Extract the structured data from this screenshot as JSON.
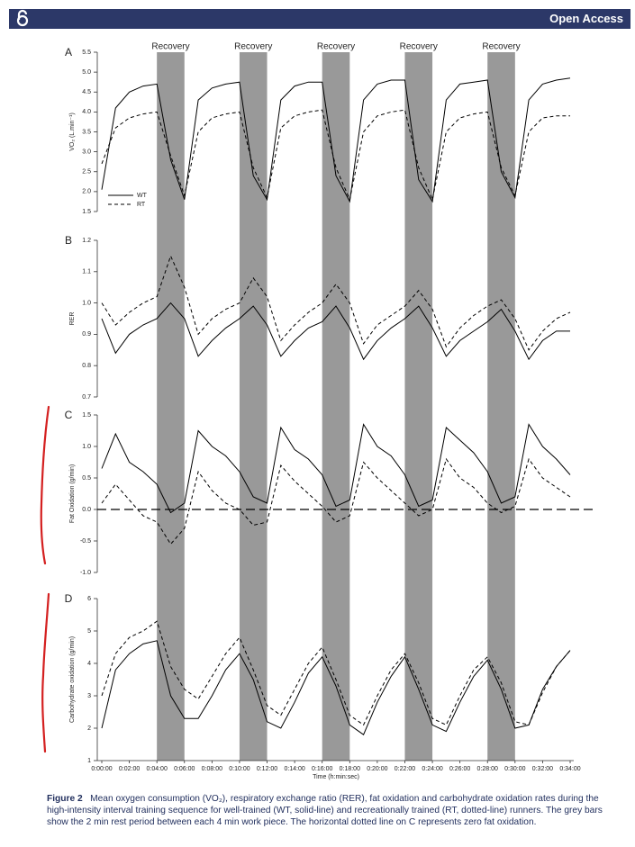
{
  "header": {
    "badge": "Open Access"
  },
  "caption": {
    "label": "Figure 2",
    "text": "Mean oxygen consumption (VO₂), respiratory exchange ratio (RER), fat oxidation and carbohydrate oxidation rates during the high-intensity interval training sequence for well-trained (WT, solid-line) and recreationally trained (RT, dotted-line) runners. The grey bars show the 2 min rest period between each 4 min work piece. The horizontal dotted line on C represents zero fat oxidation."
  },
  "chart_data": [
    {
      "type": "line",
      "panel_label": "A",
      "ylabel": "VO₂ (L.min⁻¹)",
      "x": [
        0,
        1,
        2,
        3,
        4,
        5,
        6,
        7,
        8,
        9,
        10,
        11,
        12,
        13,
        14,
        15,
        16,
        17,
        18,
        19,
        20,
        21,
        22,
        23,
        24,
        25,
        26,
        27,
        28,
        29,
        30,
        31,
        32,
        33,
        34
      ],
      "xlim": [
        0,
        34
      ],
      "ylim": [
        1.5,
        5.5
      ],
      "yticks": [
        1.5,
        {
          "value": 2,
          "label": "2.0"
        },
        2.5,
        {
          "value": 3,
          "label": "3.0"
        },
        3.5,
        {
          "value": 4,
          "label": "4.0"
        },
        4.5,
        {
          "value": 5,
          "label": "5.0"
        },
        5.5
      ],
      "legend": "lower left",
      "bands": [
        {
          "label": "Recovery",
          "xrange": [
            4,
            6
          ]
        },
        {
          "label": "Recovery",
          "xrange": [
            10,
            12
          ]
        },
        {
          "label": "Recovery",
          "xrange": [
            16,
            18
          ]
        },
        {
          "label": "Recovery",
          "xrange": [
            22,
            24
          ]
        },
        {
          "label": "Recovery",
          "xrange": [
            28,
            30
          ]
        }
      ],
      "band_color": "#999999",
      "series": [
        {
          "name": "WT",
          "color": "#000000",
          "line_style": "solid",
          "values": [
            2.05,
            4.1,
            4.5,
            4.65,
            4.7,
            2.8,
            1.8,
            4.3,
            4.6,
            4.7,
            4.75,
            2.4,
            1.8,
            4.3,
            4.65,
            4.75,
            4.75,
            2.4,
            1.75,
            4.3,
            4.7,
            4.8,
            4.8,
            2.3,
            1.75,
            4.3,
            4.7,
            4.75,
            4.8,
            2.5,
            1.85,
            4.3,
            4.7,
            4.8,
            4.85
          ]
        },
        {
          "name": "RT",
          "color": "#000000",
          "line_style": "dashed",
          "values": [
            2.7,
            3.6,
            3.85,
            3.95,
            4.0,
            2.9,
            1.9,
            3.5,
            3.85,
            3.95,
            4.0,
            2.6,
            1.85,
            3.6,
            3.9,
            4.0,
            4.05,
            2.6,
            1.8,
            3.5,
            3.9,
            4.0,
            4.05,
            2.6,
            1.8,
            3.5,
            3.85,
            3.95,
            4.0,
            2.6,
            1.9,
            3.5,
            3.85,
            3.9,
            3.9
          ]
        }
      ]
    },
    {
      "type": "line",
      "panel_label": "B",
      "ylabel": "RER",
      "x": [
        0,
        1,
        2,
        3,
        4,
        5,
        6,
        7,
        8,
        9,
        10,
        11,
        12,
        13,
        14,
        15,
        16,
        17,
        18,
        19,
        20,
        21,
        22,
        23,
        24,
        25,
        26,
        27,
        28,
        29,
        30,
        31,
        32,
        33,
        34
      ],
      "xlim": [
        0,
        34
      ],
      "ylim": [
        0.7,
        1.2
      ],
      "yticks": [
        0.7,
        0.8,
        0.9,
        {
          "value": 1,
          "label": "1.0"
        },
        1.1,
        1.2
      ],
      "series": [
        {
          "name": "WT",
          "color": "#000000",
          "line_style": "solid",
          "values": [
            0.95,
            0.84,
            0.9,
            0.93,
            0.95,
            1.0,
            0.95,
            0.83,
            0.88,
            0.92,
            0.95,
            0.99,
            0.93,
            0.83,
            0.88,
            0.92,
            0.94,
            0.99,
            0.92,
            0.82,
            0.88,
            0.92,
            0.95,
            0.99,
            0.92,
            0.83,
            0.88,
            0.91,
            0.94,
            0.98,
            0.91,
            0.82,
            0.88,
            0.91,
            0.91
          ]
        },
        {
          "name": "RT",
          "color": "#000000",
          "line_style": "dashed",
          "values": [
            1.0,
            0.93,
            0.97,
            1.0,
            1.02,
            1.15,
            1.05,
            0.9,
            0.95,
            0.98,
            1.0,
            1.08,
            1.02,
            0.88,
            0.93,
            0.97,
            1.0,
            1.06,
            1.0,
            0.87,
            0.93,
            0.96,
            0.99,
            1.04,
            0.98,
            0.86,
            0.92,
            0.96,
            0.99,
            1.01,
            0.95,
            0.85,
            0.91,
            0.95,
            0.97
          ]
        }
      ]
    },
    {
      "type": "line",
      "panel_label": "C",
      "ylabel": "Fat Oxidation (g/min)",
      "x": [
        0,
        1,
        2,
        3,
        4,
        5,
        6,
        7,
        8,
        9,
        10,
        11,
        12,
        13,
        14,
        15,
        16,
        17,
        18,
        19,
        20,
        21,
        22,
        23,
        24,
        25,
        26,
        27,
        28,
        29,
        30,
        31,
        32,
        33,
        34
      ],
      "xlim": [
        0,
        34
      ],
      "ylim": [
        -1,
        1.5
      ],
      "yticks": [
        {
          "value": -1,
          "label": "-1.0"
        },
        -0.5,
        {
          "value": 0,
          "label": "0.0"
        },
        0.5,
        {
          "value": 1,
          "label": "1.0"
        },
        1.5
      ],
      "reference_line": 0,
      "series": [
        {
          "name": "WT",
          "color": "#000000",
          "line_style": "solid",
          "values": [
            0.65,
            1.2,
            0.75,
            0.6,
            0.4,
            -0.05,
            0.1,
            1.25,
            1.0,
            0.85,
            0.6,
            0.2,
            0.1,
            1.3,
            0.95,
            0.8,
            0.55,
            0.05,
            0.15,
            1.35,
            1.0,
            0.85,
            0.55,
            0.05,
            0.15,
            1.3,
            1.1,
            0.9,
            0.6,
            0.1,
            0.2,
            1.35,
            1.0,
            0.8,
            0.55
          ]
        },
        {
          "name": "RT",
          "color": "#000000",
          "line_style": "dashed",
          "values": [
            0.1,
            0.4,
            0.15,
            -0.1,
            -0.2,
            -0.55,
            -0.3,
            0.6,
            0.3,
            0.1,
            0.0,
            -0.25,
            -0.2,
            0.7,
            0.45,
            0.25,
            0.05,
            -0.2,
            -0.1,
            0.75,
            0.5,
            0.3,
            0.1,
            -0.1,
            0.0,
            0.8,
            0.5,
            0.35,
            0.1,
            -0.05,
            0.05,
            0.8,
            0.5,
            0.35,
            0.2
          ]
        }
      ]
    },
    {
      "type": "line",
      "panel_label": "D",
      "ylabel": "Carbohydrate oxidation (g/min)",
      "xlabel": "Time (h:min:sec)",
      "x": [
        0,
        1,
        2,
        3,
        4,
        5,
        6,
        7,
        8,
        9,
        10,
        11,
        12,
        13,
        14,
        15,
        16,
        17,
        18,
        19,
        20,
        21,
        22,
        23,
        24,
        25,
        26,
        27,
        28,
        29,
        30,
        31,
        32,
        33,
        34
      ],
      "xlim": [
        0,
        34
      ],
      "ylim": [
        1,
        6
      ],
      "yticks": [
        1,
        2,
        3,
        4,
        5,
        6
      ],
      "xticks": [
        {
          "value": 0,
          "label": "0:00:00"
        },
        {
          "value": 2,
          "label": "0:02:00"
        },
        {
          "value": 4,
          "label": "0:04:00"
        },
        {
          "value": 6,
          "label": "0:06:00"
        },
        {
          "value": 8,
          "label": "0:08:00"
        },
        {
          "value": 10,
          "label": "0:10:00"
        },
        {
          "value": 12,
          "label": "0:12:00"
        },
        {
          "value": 14,
          "label": "0:14:00"
        },
        {
          "value": 16,
          "label": "0:16:00"
        },
        {
          "value": 18,
          "label": "0:18:00"
        },
        {
          "value": 20,
          "label": "0:20:00"
        },
        {
          "value": 22,
          "label": "0:22:00"
        },
        {
          "value": 24,
          "label": "0:24:00"
        },
        {
          "value": 26,
          "label": "0:26:00"
        },
        {
          "value": 28,
          "label": "0:28:00"
        },
        {
          "value": 30,
          "label": "0:30:00"
        },
        {
          "value": 32,
          "label": "0:32:00"
        },
        {
          "value": 34,
          "label": "0:34:00"
        }
      ],
      "series": [
        {
          "name": "WT",
          "color": "#000000",
          "line_style": "solid",
          "values": [
            2.0,
            3.8,
            4.3,
            4.6,
            4.7,
            3.0,
            2.3,
            2.3,
            3.0,
            3.8,
            4.3,
            3.5,
            2.2,
            2.0,
            2.8,
            3.7,
            4.2,
            3.3,
            2.1,
            1.8,
            2.8,
            3.6,
            4.2,
            3.2,
            2.1,
            1.9,
            2.8,
            3.6,
            4.1,
            3.2,
            2.0,
            2.1,
            3.2,
            3.9,
            4.4
          ]
        },
        {
          "name": "RT",
          "color": "#000000",
          "line_style": "dashed",
          "values": [
            3.0,
            4.3,
            4.8,
            5.0,
            5.3,
            3.9,
            3.2,
            2.9,
            3.6,
            4.3,
            4.8,
            3.8,
            2.7,
            2.4,
            3.2,
            4.0,
            4.5,
            3.5,
            2.4,
            2.1,
            3.0,
            3.8,
            4.3,
            3.4,
            2.3,
            2.1,
            3.0,
            3.8,
            4.2,
            3.4,
            2.2,
            2.1,
            3.1,
            3.9,
            4.4
          ]
        }
      ]
    }
  ]
}
